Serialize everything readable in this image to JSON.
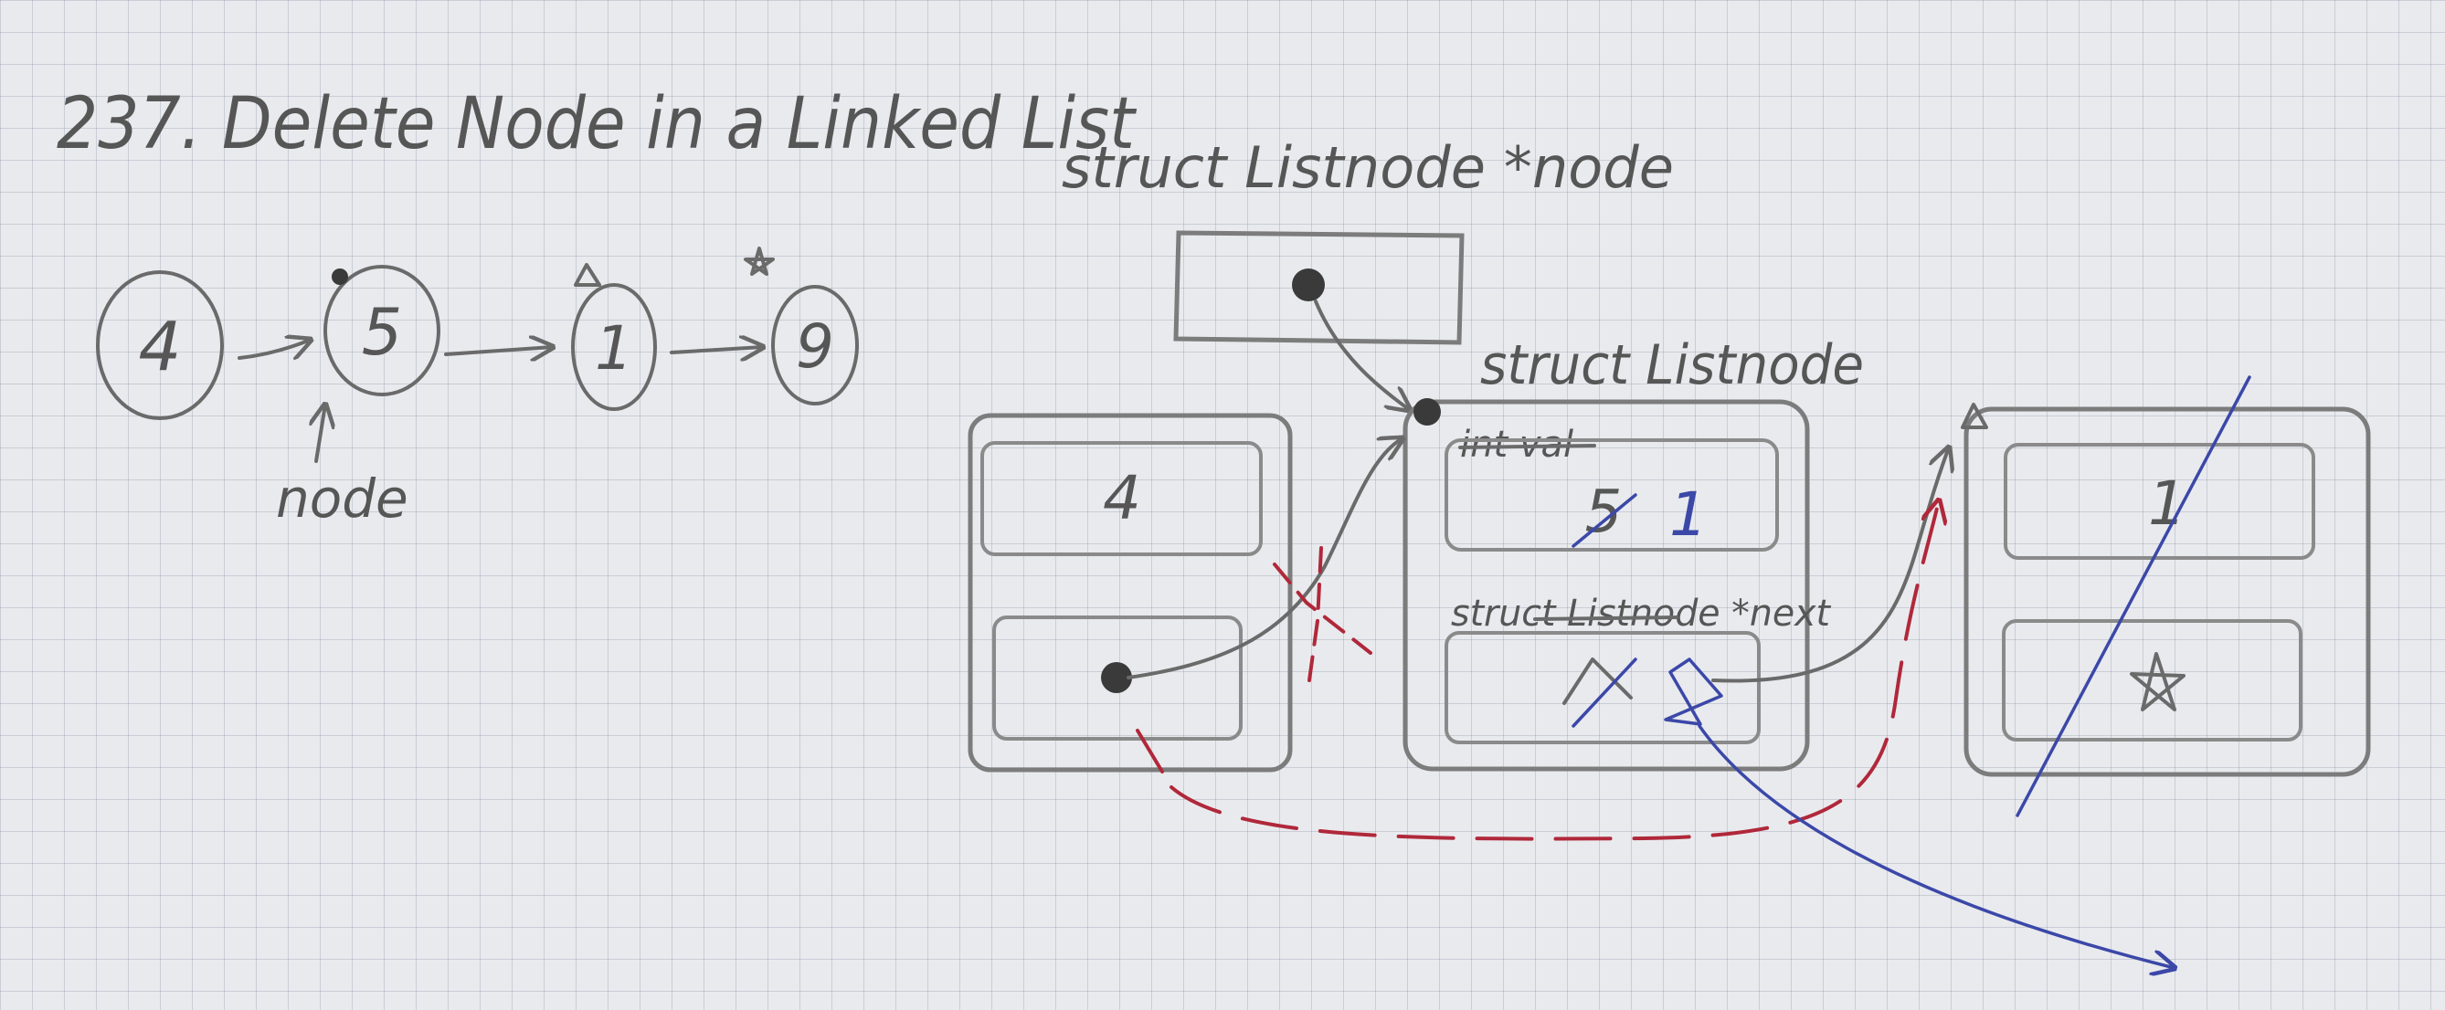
{
  "title": "237. Delete Node in a Linked List",
  "small_list": {
    "nodes": [
      "4",
      "5",
      "1",
      "9"
    ],
    "pointer_label": "node"
  },
  "diagram": {
    "pointer_decl": "struct Listnode *node",
    "struct_label": "struct Listnode",
    "val_field_label": "int val",
    "next_field_label": "struct Listnode *next",
    "node_a_val": "4",
    "node_b_old_val": "5",
    "node_b_new_val": "1",
    "node_c_val": "1"
  }
}
